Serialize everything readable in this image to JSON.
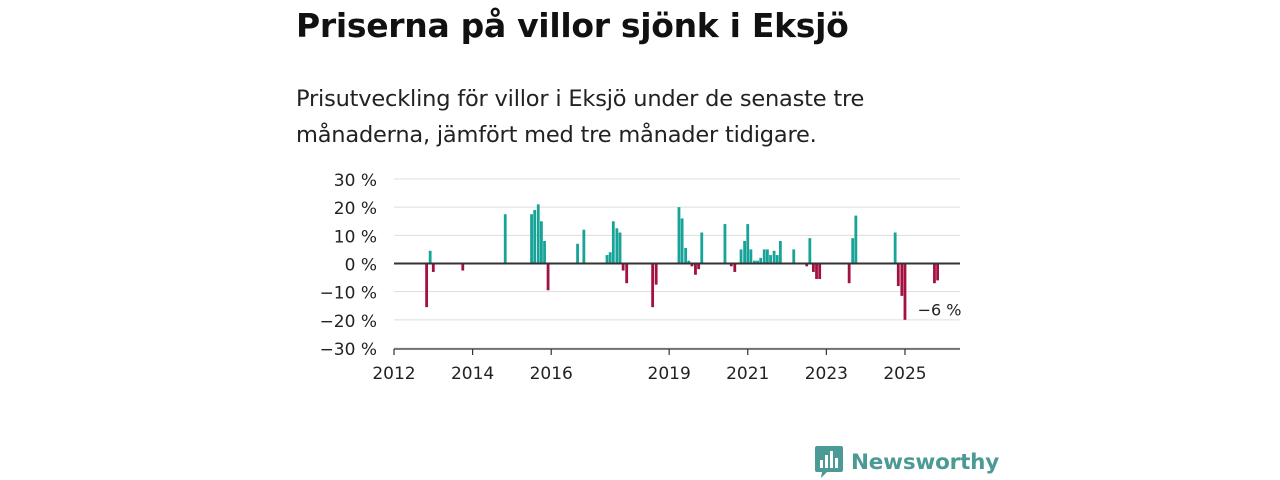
{
  "title": "Priserna på villor sjönk i Eksjö",
  "subtitle": "Prisutveckling för villor i Eksjö under de senaste tre månaderna, jämfört med tre månader tidigare.",
  "brand": {
    "name": "Newsworthy",
    "color": "#4c9a95",
    "icon": "newsworthy-logo-icon"
  },
  "colors": {
    "positive": "#17a398",
    "negative": "#a3113f",
    "grid": "#dddddd",
    "zero_line": "#333333"
  },
  "chart_data": {
    "type": "bar",
    "title": "Priserna på villor sjönk i Eksjö",
    "ylabel": "",
    "xlabel": "",
    "ylim": [
      -30,
      30
    ],
    "yticks": [
      30,
      20,
      10,
      0,
      -10,
      -20,
      -30
    ],
    "ytick_labels": [
      "30 %",
      "20 %",
      "10 %",
      "0 %",
      "−10 %",
      "−20 %",
      "−30 %"
    ],
    "xticks": [
      2012,
      2014,
      2016,
      2019,
      2021,
      2023,
      2025
    ],
    "xlim": [
      2012.0,
      2026.4
    ],
    "annotation": {
      "x": 2025.83,
      "value": -6,
      "label": "−6 %"
    },
    "series": [
      {
        "name": "Prisutveckling",
        "points": [
          {
            "x": 2012.83,
            "y": -15.5
          },
          {
            "x": 2012.92,
            "y": 4.5
          },
          {
            "x": 2013.0,
            "y": -3.0
          },
          {
            "x": 2013.75,
            "y": -2.5
          },
          {
            "x": 2014.83,
            "y": 17.5
          },
          {
            "x": 2015.5,
            "y": 17.5
          },
          {
            "x": 2015.58,
            "y": 19.0
          },
          {
            "x": 2015.67,
            "y": 21.0
          },
          {
            "x": 2015.75,
            "y": 15.0
          },
          {
            "x": 2015.83,
            "y": 8.0
          },
          {
            "x": 2015.92,
            "y": -9.5
          },
          {
            "x": 2016.67,
            "y": 7.0
          },
          {
            "x": 2016.83,
            "y": 12.0
          },
          {
            "x": 2017.42,
            "y": 3.0
          },
          {
            "x": 2017.5,
            "y": 4.0
          },
          {
            "x": 2017.58,
            "y": 15.0
          },
          {
            "x": 2017.67,
            "y": 12.5
          },
          {
            "x": 2017.75,
            "y": 11.0
          },
          {
            "x": 2017.83,
            "y": -2.5
          },
          {
            "x": 2017.92,
            "y": -7.0
          },
          {
            "x": 2018.58,
            "y": -15.5
          },
          {
            "x": 2018.67,
            "y": -7.5
          },
          {
            "x": 2019.25,
            "y": 20.0
          },
          {
            "x": 2019.33,
            "y": 16.0
          },
          {
            "x": 2019.42,
            "y": 5.5
          },
          {
            "x": 2019.5,
            "y": 1.0
          },
          {
            "x": 2019.58,
            "y": -1.0
          },
          {
            "x": 2019.67,
            "y": -4.0
          },
          {
            "x": 2019.75,
            "y": -2.0
          },
          {
            "x": 2019.83,
            "y": 11.0
          },
          {
            "x": 2020.42,
            "y": 14.0
          },
          {
            "x": 2020.58,
            "y": -1.0
          },
          {
            "x": 2020.67,
            "y": -3.0
          },
          {
            "x": 2020.83,
            "y": 5.0
          },
          {
            "x": 2020.92,
            "y": 8.0
          },
          {
            "x": 2021.0,
            "y": 14.0
          },
          {
            "x": 2021.08,
            "y": 5.0
          },
          {
            "x": 2021.17,
            "y": 1.0
          },
          {
            "x": 2021.25,
            "y": 1.0
          },
          {
            "x": 2021.33,
            "y": 2.0
          },
          {
            "x": 2021.42,
            "y": 5.0
          },
          {
            "x": 2021.5,
            "y": 5.0
          },
          {
            "x": 2021.58,
            "y": 3.0
          },
          {
            "x": 2021.67,
            "y": 4.5
          },
          {
            "x": 2021.75,
            "y": 3.0
          },
          {
            "x": 2021.83,
            "y": 8.0
          },
          {
            "x": 2022.17,
            "y": 5.0
          },
          {
            "x": 2022.5,
            "y": -1.0
          },
          {
            "x": 2022.58,
            "y": 9.0
          },
          {
            "x": 2022.67,
            "y": -3.0
          },
          {
            "x": 2022.75,
            "y": -5.5
          },
          {
            "x": 2022.83,
            "y": -5.5
          },
          {
            "x": 2023.58,
            "y": -7.0
          },
          {
            "x": 2023.67,
            "y": 9.0
          },
          {
            "x": 2023.75,
            "y": 17.0
          },
          {
            "x": 2024.75,
            "y": 11.0
          },
          {
            "x": 2024.83,
            "y": -8.0
          },
          {
            "x": 2024.92,
            "y": -11.5
          },
          {
            "x": 2025.0,
            "y": -20.0
          },
          {
            "x": 2025.75,
            "y": -7.0
          },
          {
            "x": 2025.83,
            "y": -6.0
          }
        ]
      }
    ]
  }
}
